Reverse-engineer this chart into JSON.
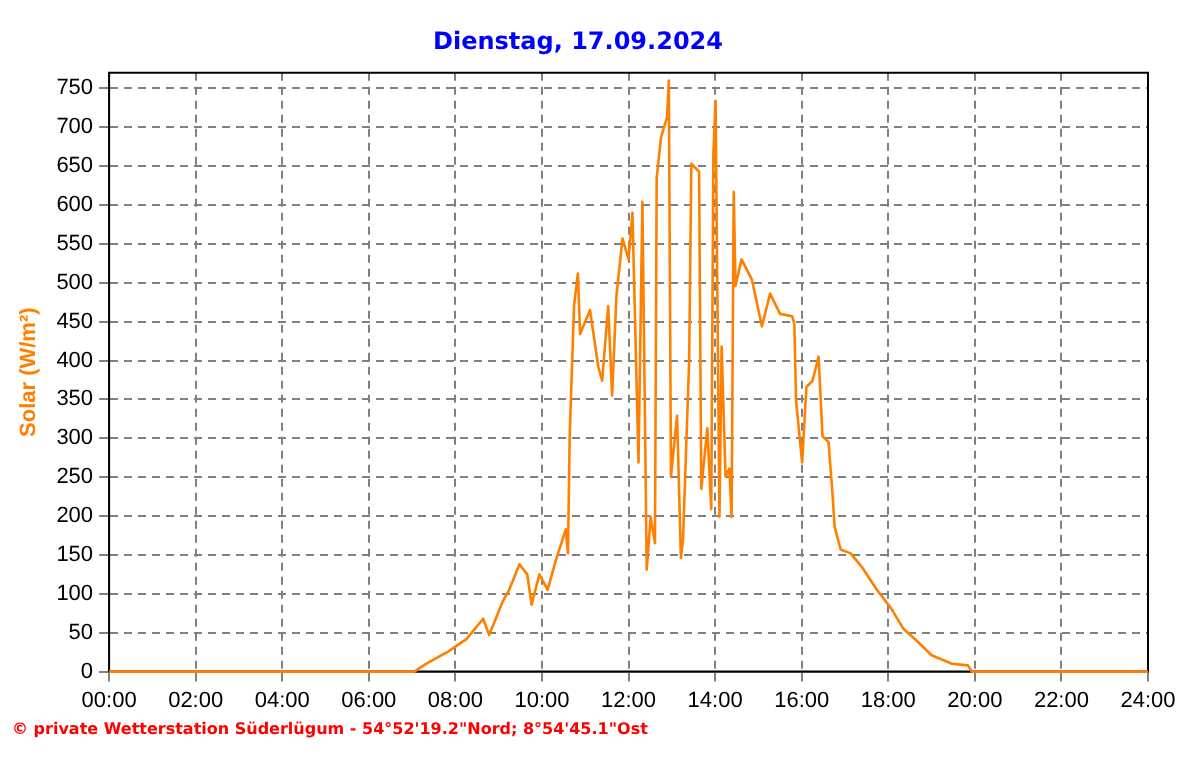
{
  "chart_data": {
    "type": "line",
    "title": "Dienstag, 17.09.2024",
    "ylabel": "Solar (W/m²)",
    "color": "#ff8000",
    "annotations": [
      "© private Wetterstation Süderlügum - 54°52'19.2\"Nord; 8°54'45.1\"Ost"
    ],
    "xlim": [
      0,
      24
    ],
    "xticks": [
      {
        "value": 0,
        "label": "00:00"
      },
      {
        "value": 2,
        "label": "02:00"
      },
      {
        "value": 4,
        "label": "04:00"
      },
      {
        "value": 6,
        "label": "06:00"
      },
      {
        "value": 8,
        "label": "08:00"
      },
      {
        "value": 10,
        "label": "10:00"
      },
      {
        "value": 12,
        "label": "12:00"
      },
      {
        "value": 14,
        "label": "14:00"
      },
      {
        "value": 16,
        "label": "16:00"
      },
      {
        "value": 18,
        "label": "18:00"
      },
      {
        "value": 20,
        "label": "20:00"
      },
      {
        "value": 22,
        "label": "22:00"
      },
      {
        "value": 24,
        "label": "24:00"
      }
    ],
    "ylim": [
      0,
      770
    ],
    "yticks": [
      0,
      50,
      100,
      150,
      200,
      250,
      300,
      350,
      400,
      450,
      500,
      550,
      600,
      650,
      700,
      750
    ],
    "grid": true,
    "legend": false,
    "marker": "none",
    "line_style": "solid",
    "x": [
      0,
      7.05,
      7.32,
      7.84,
      8.26,
      8.64,
      8.78,
      9.1,
      9.24,
      9.48,
      9.66,
      9.76,
      9.94,
      10.13,
      10.32,
      10.55,
      10.6,
      10.64,
      10.74,
      10.83,
      10.88,
      11.11,
      11.3,
      11.39,
      11.53,
      11.62,
      11.72,
      11.76,
      11.86,
      12.0,
      12.09,
      12.23,
      12.32,
      12.42,
      12.51,
      12.61,
      12.65,
      12.75,
      12.89,
      12.93,
      12.98,
      13.12,
      13.21,
      13.26,
      13.4,
      13.45,
      13.63,
      13.68,
      13.82,
      13.91,
      13.96,
      14.01,
      14.1,
      14.15,
      14.24,
      14.33,
      14.38,
      14.43,
      14.47,
      14.61,
      14.85,
      15.08,
      15.27,
      15.5,
      15.78,
      15.83,
      15.87,
      16.01,
      16.11,
      16.25,
      16.39,
      16.48,
      16.62,
      16.71,
      16.76,
      16.9,
      17.13,
      17.41,
      17.74,
      18.07,
      18.35,
      18.67,
      19.0,
      19.47,
      19.84,
      19.93,
      24
    ],
    "values": [
      0,
      0,
      10,
      26,
      42,
      68,
      47,
      91,
      105,
      138,
      125,
      86,
      125,
      105,
      143,
      183,
      152,
      303,
      470,
      512,
      434,
      465,
      392,
      374,
      470,
      355,
      483,
      504,
      557,
      530,
      590,
      269,
      604,
      131,
      199,
      165,
      635,
      687,
      713,
      760,
      251,
      329,
      146,
      172,
      400,
      653,
      643,
      235,
      313,
      209,
      666,
      734,
      199,
      418,
      251,
      261,
      199,
      617,
      496,
      530,
      504,
      444,
      486,
      460,
      457,
      447,
      348,
      269,
      366,
      374,
      405,
      303,
      295,
      230,
      186,
      157,
      152,
      133,
      105,
      81,
      55,
      39,
      21,
      10,
      8,
      0,
      0
    ]
  }
}
